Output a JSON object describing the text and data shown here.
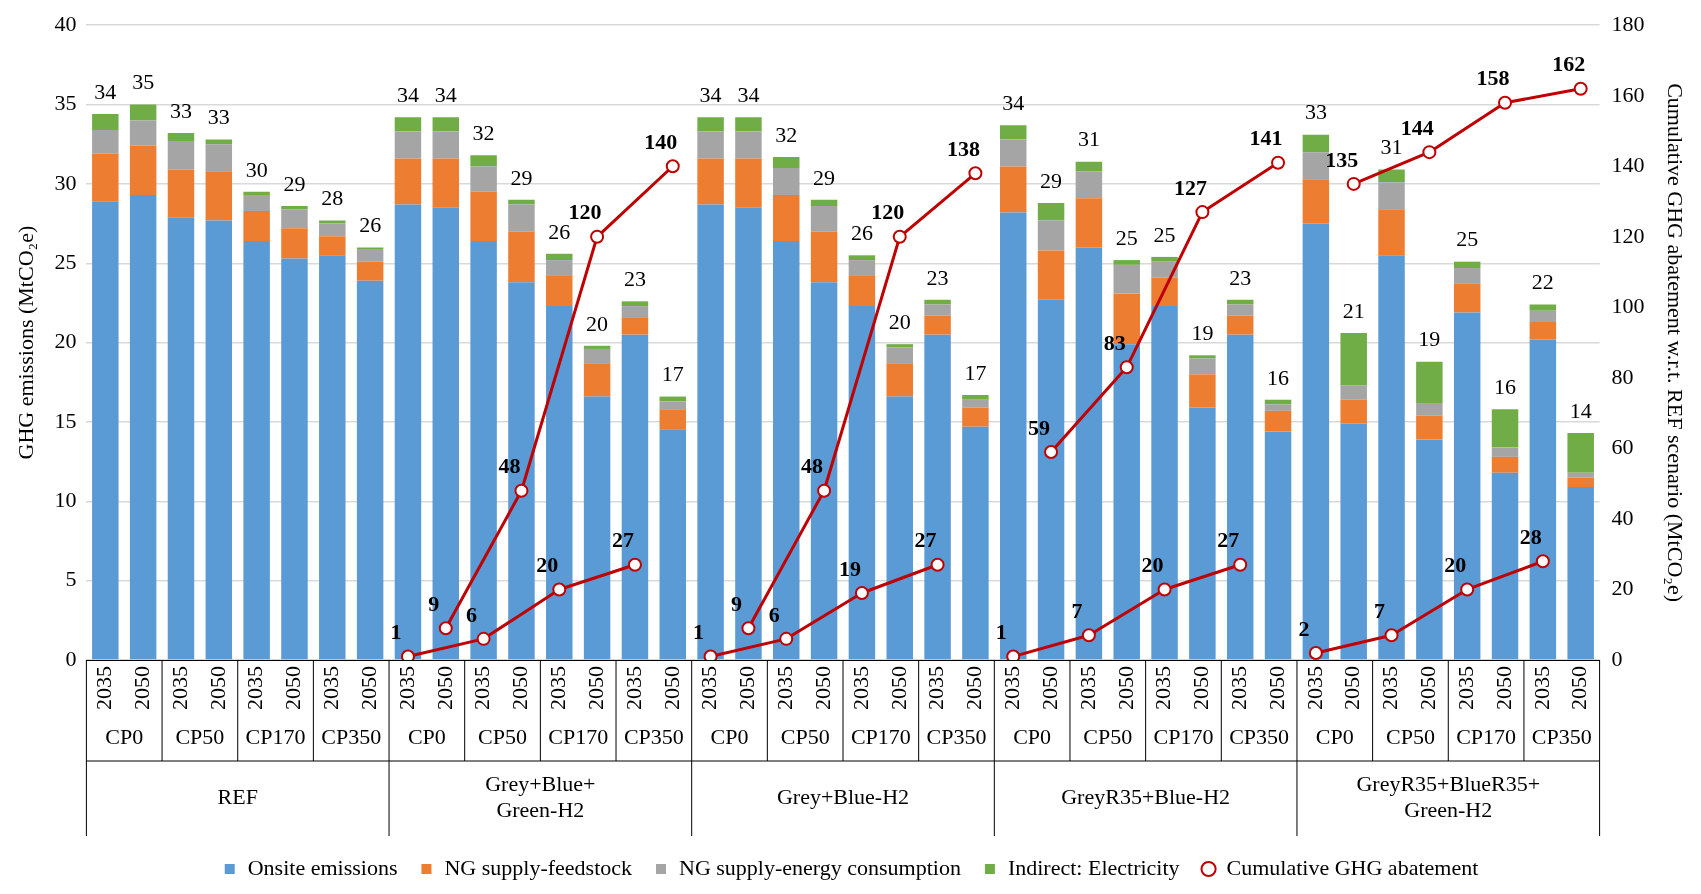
{
  "chart_data": {
    "type": "bar",
    "stacked": true,
    "ylabel": "GHG emissions (MtCO₂e)",
    "y2label": "Cumulative GHG abatement w.r.t. REF scenario (MtCO₂e)",
    "categories": [
      "2035",
      "2050",
      "2035",
      "2050",
      "2035",
      "2050",
      "2035",
      "2050",
      "2035",
      "2050",
      "2035",
      "2050",
      "2035",
      "2050",
      "2035",
      "2050",
      "2035",
      "2050",
      "2035",
      "2050",
      "2035",
      "2050",
      "2035",
      "2050",
      "2035",
      "2050",
      "2035",
      "2050",
      "2035",
      "2050",
      "2035",
      "2050",
      "2035",
      "2050",
      "2035",
      "2050",
      "2035",
      "2050",
      "2035",
      "2050"
    ],
    "annotations": [
      "CP0",
      "CP50",
      "CP170",
      "CP350",
      "CP0",
      "CP50",
      "CP170",
      "CP350",
      "CP0",
      "CP50",
      "CP170",
      "CP350",
      "CP0",
      "CP50",
      "CP170",
      "CP350",
      "CP0",
      "CP50",
      "CP170",
      "CP350",
      "REF",
      "Grey+Blue+ Green-H2",
      "Grey+Blue-H2",
      "GreyR35+Blue-H2",
      "GreyR35+BlueR35+ Green-H2"
    ],
    "ylim": [
      0,
      40
    ],
    "yticks": [
      0,
      5,
      10,
      15,
      20,
      25,
      30,
      35,
      40
    ],
    "y2lim": [
      0,
      180
    ],
    "y2ticks": [
      0,
      20,
      40,
      60,
      80,
      100,
      120,
      140,
      160,
      180
    ],
    "grid": "y",
    "legend": "bottom",
    "marker": "circle",
    "totals": [
      "34",
      "35",
      "33",
      "33",
      "30",
      "29",
      "28",
      "26",
      "34",
      "34",
      "32",
      "29",
      "26",
      "20",
      "23",
      "17",
      "34",
      "34",
      "32",
      "29",
      "26",
      "20",
      "23",
      "17",
      "34",
      "29",
      "31",
      "25",
      "25",
      "19",
      "23",
      "16",
      "33",
      "21",
      "31",
      "19",
      "25",
      "16",
      "22",
      "14"
    ],
    "series": [
      {
        "name": "Onsite emissions",
        "color": "#5b9bd5",
        "values": [
          28.9,
          29.3,
          27.9,
          27.7,
          26.4,
          25.3,
          25.5,
          23.9,
          28.7,
          28.5,
          26.4,
          23.8,
          22.3,
          16.6,
          20.5,
          14.5,
          28.7,
          28.5,
          26.4,
          23.8,
          22.3,
          16.6,
          20.5,
          14.7,
          28.2,
          22.7,
          26.0,
          19.9,
          22.3,
          15.9,
          20.5,
          14.4,
          27.5,
          14.9,
          25.5,
          13.9,
          21.9,
          11.8,
          20.2,
          10.9
        ]
      },
      {
        "name": "NG supply-feedstock",
        "color": "#ed7d31",
        "values": [
          3.0,
          3.1,
          3.0,
          3.1,
          1.9,
          1.9,
          1.2,
          1.2,
          2.9,
          3.1,
          3.1,
          3.2,
          1.9,
          2.1,
          1.1,
          1.3,
          2.9,
          3.1,
          2.9,
          3.2,
          1.9,
          2.1,
          1.2,
          1.2,
          2.9,
          3.1,
          3.1,
          3.2,
          1.8,
          2.1,
          1.2,
          1.3,
          2.8,
          1.5,
          2.9,
          1.5,
          1.8,
          1.0,
          1.1,
          0.6
        ]
      },
      {
        "name": "NG supply-energy consumption",
        "color": "#a5a5a5",
        "values": [
          1.5,
          1.6,
          1.8,
          1.7,
          1.0,
          1.2,
          0.8,
          0.8,
          1.7,
          1.7,
          1.6,
          1.7,
          1.0,
          0.9,
          0.7,
          0.5,
          1.7,
          1.7,
          1.7,
          1.6,
          1.0,
          1.0,
          0.7,
          0.5,
          1.7,
          1.9,
          1.7,
          1.8,
          1.0,
          1.0,
          0.7,
          0.4,
          1.7,
          0.9,
          1.7,
          0.8,
          1.0,
          0.6,
          0.7,
          0.3
        ]
      },
      {
        "name": "Indirect: Electricity",
        "color": "#70ad47",
        "values": [
          1.0,
          1.0,
          0.5,
          0.3,
          0.2,
          0.2,
          0.2,
          0.1,
          0.9,
          0.9,
          0.7,
          0.3,
          0.4,
          0.2,
          0.3,
          0.3,
          0.9,
          0.9,
          0.7,
          0.4,
          0.3,
          0.2,
          0.3,
          0.3,
          0.9,
          1.1,
          0.6,
          0.3,
          0.3,
          0.2,
          0.3,
          0.3,
          1.1,
          3.3,
          0.8,
          2.6,
          0.4,
          2.4,
          0.4,
          2.5
        ]
      },
      {
        "type": "line",
        "axis": "y2",
        "name": "Cumulative GHG abatement",
        "color": "#c00000",
        "values": [
          null,
          null,
          null,
          null,
          null,
          null,
          null,
          null,
          1,
          null,
          6,
          null,
          20,
          null,
          27,
          null,
          null,
          null,
          null,
          null,
          null,
          null,
          null,
          null,
          null,
          null,
          null,
          null,
          null,
          null,
          null,
          null,
          null,
          null,
          null,
          null,
          null,
          null,
          null,
          null
        ],
        "value_labels": [
          null,
          null,
          null,
          null,
          null,
          null,
          null,
          null,
          "1",
          null,
          "6",
          null,
          "20",
          null,
          "27",
          null,
          null,
          null,
          null,
          null,
          null,
          null,
          null,
          null,
          null,
          null,
          null,
          null,
          null,
          null,
          null,
          null,
          null,
          null,
          null,
          null,
          null,
          null,
          null,
          null
        ]
      },
      {
        "type": "line",
        "axis": "y2",
        "color": "#c00000",
        "values": [
          null,
          null,
          null,
          null,
          null,
          null,
          null,
          null,
          null,
          9,
          null,
          48,
          null,
          120,
          null,
          140,
          null,
          null,
          null,
          null,
          null,
          null,
          null,
          null,
          null,
          null,
          null,
          null,
          null,
          null,
          null,
          null,
          null,
          null,
          null,
          null,
          null,
          null,
          null,
          null
        ],
        "value_labels": [
          null,
          null,
          null,
          null,
          null,
          null,
          null,
          null,
          null,
          "9",
          null,
          "48",
          null,
          "120",
          null,
          "140",
          null,
          null,
          null,
          null,
          null,
          null,
          null,
          null,
          null,
          null,
          null,
          null,
          null,
          null,
          null,
          null,
          null,
          null,
          null,
          null,
          null,
          null,
          null,
          null
        ]
      },
      {
        "type": "line",
        "axis": "y2",
        "color": "#c00000",
        "values": [
          null,
          null,
          null,
          null,
          null,
          null,
          null,
          null,
          null,
          null,
          null,
          null,
          null,
          null,
          null,
          null,
          1,
          null,
          6,
          null,
          19,
          null,
          27,
          null,
          null,
          null,
          null,
          null,
          null,
          null,
          null,
          null,
          null,
          null,
          null,
          null,
          null,
          null,
          null,
          null
        ],
        "value_labels": [
          null,
          null,
          null,
          null,
          null,
          null,
          null,
          null,
          null,
          null,
          null,
          null,
          null,
          null,
          null,
          null,
          "1",
          null,
          "6",
          null,
          "19",
          null,
          "27",
          null,
          null,
          null,
          null,
          null,
          null,
          null,
          null,
          null,
          null,
          null,
          null,
          null,
          null,
          null,
          null,
          null
        ]
      },
      {
        "type": "line",
        "axis": "y2",
        "color": "#c00000",
        "values": [
          null,
          null,
          null,
          null,
          null,
          null,
          null,
          null,
          null,
          null,
          null,
          null,
          null,
          null,
          null,
          null,
          null,
          9,
          null,
          48,
          null,
          120,
          null,
          138,
          null,
          null,
          null,
          null,
          null,
          null,
          null,
          null,
          null,
          null,
          null,
          null,
          null,
          null,
          null,
          null
        ],
        "value_labels": [
          null,
          null,
          null,
          null,
          null,
          null,
          null,
          null,
          null,
          null,
          null,
          null,
          null,
          null,
          null,
          null,
          null,
          "9",
          null,
          "48",
          null,
          "120",
          null,
          "138",
          null,
          null,
          null,
          null,
          null,
          null,
          null,
          null,
          null,
          null,
          null,
          null,
          null,
          null,
          null,
          null
        ]
      },
      {
        "type": "line",
        "axis": "y2",
        "color": "#c00000",
        "values": [
          null,
          null,
          null,
          null,
          null,
          null,
          null,
          null,
          null,
          null,
          null,
          null,
          null,
          null,
          null,
          null,
          null,
          null,
          null,
          null,
          null,
          null,
          null,
          null,
          1,
          null,
          7,
          null,
          20,
          null,
          27,
          null,
          null,
          null,
          null,
          null,
          null,
          null,
          null,
          null
        ],
        "value_labels": [
          null,
          null,
          null,
          null,
          null,
          null,
          null,
          null,
          null,
          null,
          null,
          null,
          null,
          null,
          null,
          null,
          null,
          null,
          null,
          null,
          null,
          null,
          null,
          null,
          "1",
          null,
          "7",
          null,
          "20",
          null,
          "27",
          null,
          null,
          null,
          null,
          null,
          null,
          null,
          null,
          null
        ]
      },
      {
        "type": "line",
        "axis": "y2",
        "color": "#c00000",
        "values": [
          null,
          null,
          null,
          null,
          null,
          null,
          null,
          null,
          null,
          null,
          null,
          null,
          null,
          null,
          null,
          null,
          null,
          null,
          null,
          null,
          null,
          null,
          null,
          null,
          null,
          59,
          null,
          83,
          null,
          127,
          null,
          141,
          null,
          null,
          null,
          null,
          null,
          null,
          null,
          null
        ],
        "value_labels": [
          null,
          null,
          null,
          null,
          null,
          null,
          null,
          null,
          null,
          null,
          null,
          null,
          null,
          null,
          null,
          null,
          null,
          null,
          null,
          null,
          null,
          null,
          null,
          null,
          null,
          "59",
          null,
          "83",
          null,
          "127",
          null,
          "141",
          null,
          null,
          null,
          null,
          null,
          null,
          null,
          null
        ]
      },
      {
        "type": "line",
        "axis": "y2",
        "color": "#c00000",
        "values": [
          null,
          null,
          null,
          null,
          null,
          null,
          null,
          null,
          null,
          null,
          null,
          null,
          null,
          null,
          null,
          null,
          null,
          null,
          null,
          null,
          null,
          null,
          null,
          null,
          null,
          null,
          null,
          null,
          null,
          null,
          null,
          null,
          2,
          null,
          7,
          null,
          20,
          null,
          28,
          null
        ],
        "value_labels": [
          null,
          null,
          null,
          null,
          null,
          null,
          null,
          null,
          null,
          null,
          null,
          null,
          null,
          null,
          null,
          null,
          null,
          null,
          null,
          null,
          null,
          null,
          null,
          null,
          null,
          null,
          null,
          null,
          null,
          null,
          null,
          null,
          "2",
          null,
          "7",
          null,
          "20",
          null,
          "28",
          null
        ]
      },
      {
        "type": "line",
        "axis": "y2",
        "color": "#c00000",
        "values": [
          null,
          null,
          null,
          null,
          null,
          null,
          null,
          null,
          null,
          null,
          null,
          null,
          null,
          null,
          null,
          null,
          null,
          null,
          null,
          null,
          null,
          null,
          null,
          null,
          null,
          null,
          null,
          null,
          null,
          null,
          null,
          null,
          null,
          135,
          null,
          144,
          null,
          158,
          null,
          162
        ],
        "value_labels": [
          null,
          null,
          null,
          null,
          null,
          null,
          null,
          null,
          null,
          null,
          null,
          null,
          null,
          null,
          null,
          null,
          null,
          null,
          null,
          null,
          null,
          null,
          null,
          null,
          null,
          null,
          null,
          null,
          null,
          null,
          null,
          null,
          null,
          "135",
          null,
          "144",
          null,
          "158",
          null,
          "162"
        ]
      }
    ]
  }
}
